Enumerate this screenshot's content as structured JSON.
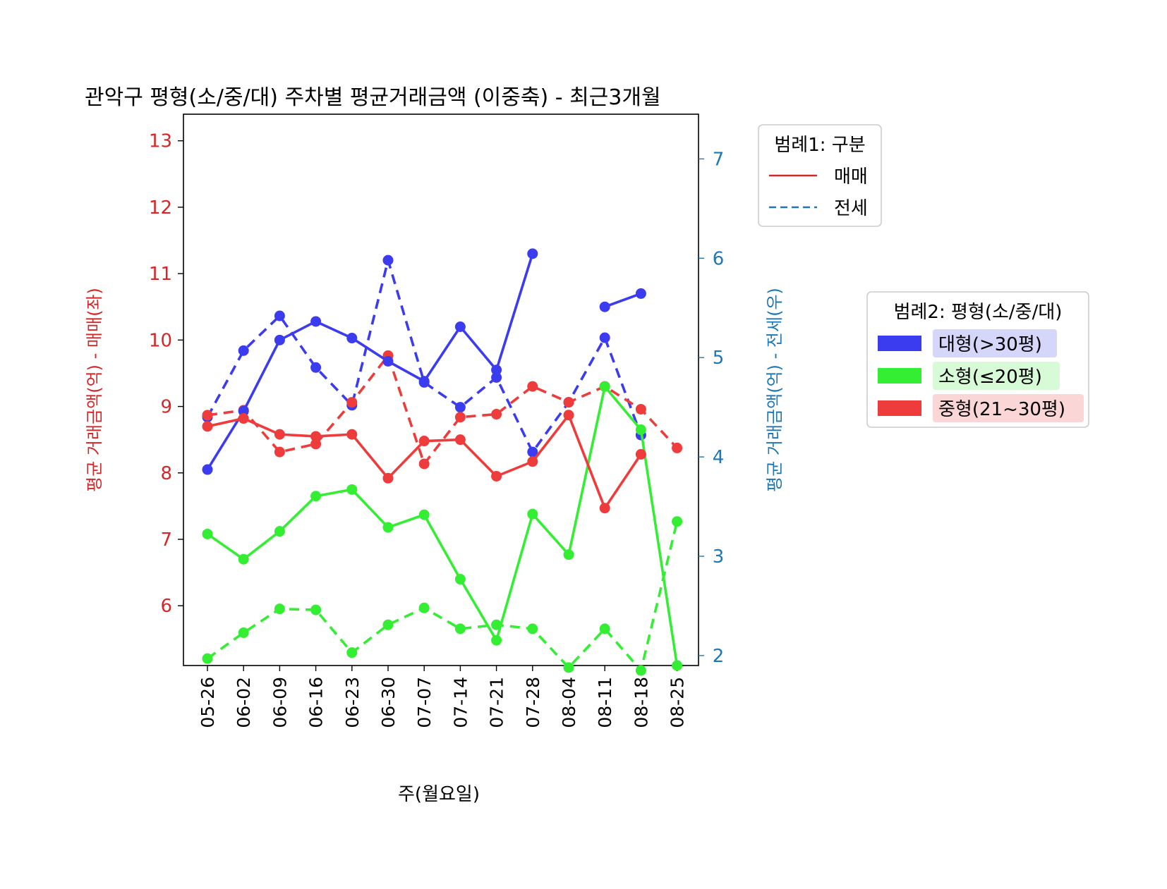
{
  "chart_data": {
    "type": "line",
    "title": "관악구 평형(소/중/대) 주차별 평균거래금액 (이중축) - 최근3개월",
    "xlabel": "주(월요일)",
    "ylabel_left": "평균 거래금액(억) - 매매(좌)",
    "ylabel_right": "평균 거래금액(억) - 전세(우)",
    "ylim_left": [
      5.1,
      13.4
    ],
    "ylim_right": [
      1.9,
      7.45
    ],
    "yticks_left": [
      6,
      7,
      8,
      9,
      10,
      11,
      12,
      13
    ],
    "yticks_right": [
      2,
      3,
      4,
      5,
      6,
      7
    ],
    "grid": false,
    "categories": [
      "05-26",
      "06-02",
      "06-09",
      "06-16",
      "06-23",
      "06-30",
      "07-07",
      "07-14",
      "07-21",
      "07-28",
      "08-04",
      "08-11",
      "08-18",
      "08-25"
    ],
    "series": [
      {
        "name": "대형(>30평)",
        "deal": "매매",
        "axis": "left",
        "color": "#3b3bf0",
        "dash": false,
        "values": [
          8.05,
          8.93,
          10.0,
          10.28,
          10.03,
          9.68,
          9.38,
          10.2,
          9.55,
          11.3,
          null,
          10.5,
          10.7,
          null
        ]
      },
      {
        "name": "소형(≤20평)",
        "deal": "매매",
        "axis": "left",
        "color": "#33ee33",
        "dash": false,
        "values": [
          7.08,
          6.7,
          7.12,
          7.65,
          7.75,
          7.18,
          7.37,
          6.4,
          5.48,
          7.38,
          6.77,
          9.3,
          8.65,
          5.1
        ]
      },
      {
        "name": "중형(21~30평)",
        "deal": "매매",
        "axis": "left",
        "color": "#ee3b3b",
        "dash": false,
        "values": [
          8.7,
          8.82,
          8.58,
          8.55,
          8.58,
          7.92,
          8.48,
          8.5,
          7.95,
          8.17,
          8.87,
          7.47,
          8.28,
          null
        ]
      },
      {
        "name": "대형(>30평)",
        "deal": "전세",
        "axis": "right",
        "color": "#3b3bf0",
        "dash": true,
        "values": [
          4.4,
          5.07,
          5.42,
          4.9,
          4.52,
          5.98,
          4.75,
          4.5,
          4.8,
          4.05,
          4.55,
          5.2,
          4.22,
          null
        ]
      },
      {
        "name": "소형(≤20평)",
        "deal": "전세",
        "axis": "right",
        "color": "#33ee33",
        "dash": true,
        "values": [
          1.97,
          2.23,
          2.47,
          2.46,
          2.03,
          2.31,
          2.48,
          2.27,
          2.31,
          2.27,
          1.88,
          2.27,
          1.85,
          3.35
        ]
      },
      {
        "name": "중형(21~30평)",
        "deal": "전세",
        "axis": "right",
        "color": "#ee3b3b",
        "dash": true,
        "values": [
          4.42,
          4.47,
          4.05,
          4.13,
          4.55,
          5.02,
          3.93,
          4.4,
          4.43,
          4.71,
          4.55,
          4.71,
          4.48,
          4.09
        ]
      }
    ],
    "legend1": {
      "title": "범례1: 구분",
      "position": "right, upper",
      "items": [
        {
          "label": "매매",
          "style": "solid"
        },
        {
          "label": "전세",
          "style": "dashed"
        }
      ]
    },
    "legend2": {
      "title": "범례2: 평형(소/중/대)",
      "position": "right, middle",
      "items": [
        {
          "label": "대형(>30평)",
          "color": "#3b3bf0",
          "bg": "#d6d6fb"
        },
        {
          "label": "소형(≤20평)",
          "color": "#33ee33",
          "bg": "#d6fbd6"
        },
        {
          "label": "중형(21~30평)",
          "color": "#ee3b3b",
          "bg": "#fbd6d6"
        }
      ]
    },
    "colors": {
      "left_axis": "#d62728",
      "right_axis": "#1f77b4",
      "legend1_line_solid": "#d62728",
      "legend1_line_dashed": "#1f77b4"
    }
  }
}
